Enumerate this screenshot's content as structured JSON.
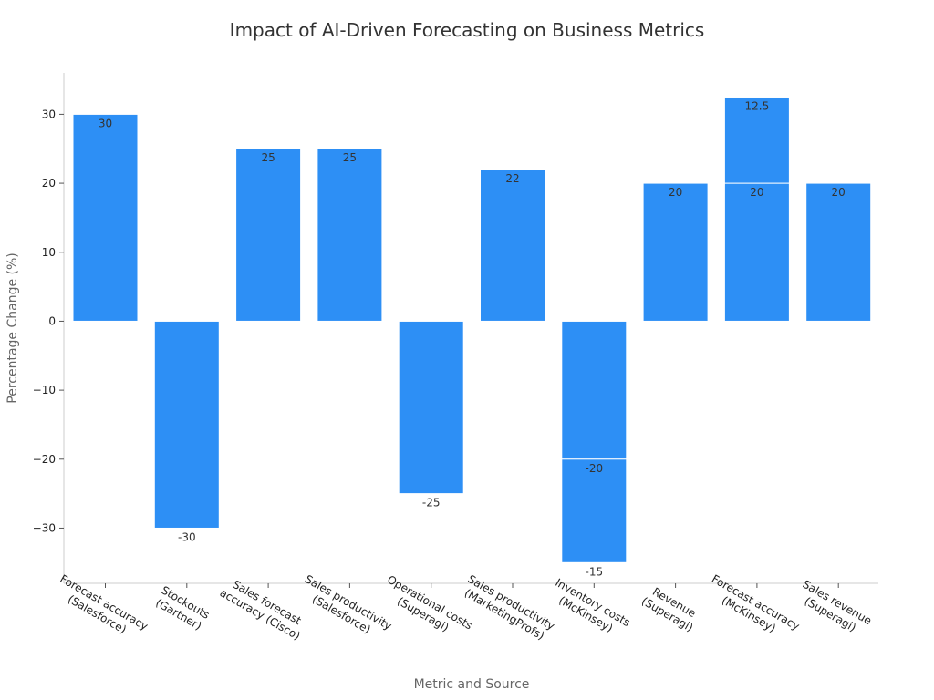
{
  "chart_data": {
    "type": "bar",
    "title": "Impact of AI-Driven Forecasting on Business Metrics",
    "xlabel": "Metric and Source",
    "ylabel": "Percentage Change (%)",
    "ylim": [
      -38,
      36
    ],
    "yticks": [
      30,
      20,
      10,
      0,
      -10,
      -20,
      -30
    ],
    "ytick_labels": [
      "30",
      "20",
      "10",
      "0",
      "−10",
      "−20",
      "−30"
    ],
    "bar_color": "#2d8ff5",
    "grid": false,
    "categories": [
      [
        "Forecast accuracy",
        "(Salesforce)"
      ],
      [
        "Stockouts",
        "(Gartner)"
      ],
      [
        "Sales forecast",
        "accuracy (Cisco)"
      ],
      [
        "Sales productivity",
        "(Salesforce)"
      ],
      [
        "Operational costs",
        "(Superagi)"
      ],
      [
        "Sales productivity",
        "(MarketingProfs)"
      ],
      [
        "Inventory costs",
        "(McKinsey)"
      ],
      [
        "Revenue",
        "(Superagi)"
      ],
      [
        "Forecast accuracy",
        "(McKinsey)"
      ],
      [
        "Sales revenue",
        "(Superagi)"
      ]
    ],
    "series": [
      {
        "name": "primary",
        "values": [
          30,
          -30,
          25,
          25,
          -25,
          22,
          -20,
          20,
          20,
          20
        ],
        "labels": [
          "30",
          "-30",
          "25",
          "25",
          "-25",
          "22",
          "-20",
          "20",
          "20",
          "20"
        ]
      },
      {
        "name": "additional",
        "values": [
          null,
          null,
          null,
          null,
          null,
          null,
          -15,
          null,
          12.5,
          null
        ],
        "labels": [
          null,
          null,
          null,
          null,
          null,
          null,
          "-15",
          null,
          "12.5",
          null
        ]
      }
    ]
  }
}
